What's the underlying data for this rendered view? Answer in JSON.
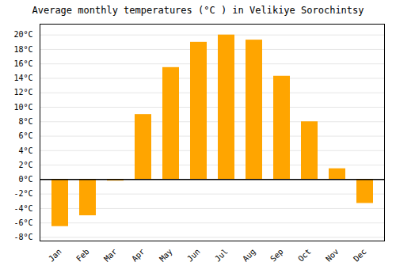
{
  "chart_data": {
    "type": "bar",
    "title": "Average monthly temperatures (°C ) in Velikiye Sorochintsy",
    "categories": [
      "Jan",
      "Feb",
      "Mar",
      "Apr",
      "May",
      "Jun",
      "Jul",
      "Aug",
      "Sep",
      "Oct",
      "Nov",
      "Dec"
    ],
    "values": [
      -6.5,
      -5.0,
      -0.2,
      9.0,
      15.5,
      19.0,
      20.0,
      19.3,
      14.3,
      8.0,
      1.5,
      -3.3
    ],
    "color": "#FFA500",
    "ylim": [
      -8.5,
      21.5
    ],
    "yticks": [
      {
        "value": -8,
        "label": "-8°C"
      },
      {
        "value": -6,
        "label": "-6°C"
      },
      {
        "value": -4,
        "label": "-4°C"
      },
      {
        "value": -2,
        "label": "-2°C"
      },
      {
        "value": 0,
        "label": "0°C"
      },
      {
        "value": 2,
        "label": "2°C"
      },
      {
        "value": 4,
        "label": "4°C"
      },
      {
        "value": 6,
        "label": "6°C"
      },
      {
        "value": 8,
        "label": "8°C"
      },
      {
        "value": 10,
        "label": "10°C"
      },
      {
        "value": 12,
        "label": "12°C"
      },
      {
        "value": 14,
        "label": "14°C"
      },
      {
        "value": 16,
        "label": "16°C"
      },
      {
        "value": 18,
        "label": "18°C"
      },
      {
        "value": 20,
        "label": "20°C"
      }
    ],
    "grid": true
  }
}
